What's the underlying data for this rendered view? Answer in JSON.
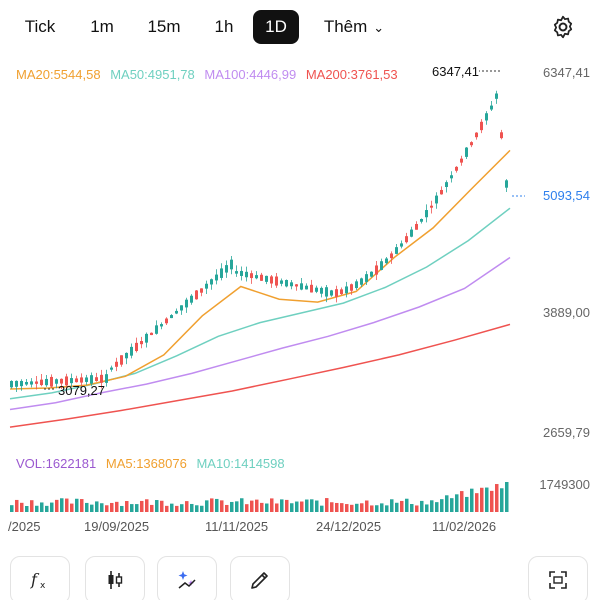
{
  "timeframes": [
    {
      "label": "Tick",
      "active": false
    },
    {
      "label": "1m",
      "active": false
    },
    {
      "label": "15m",
      "active": false
    },
    {
      "label": "1h",
      "active": false
    },
    {
      "label": "1D",
      "active": true
    }
  ],
  "more_label": "Thêm",
  "ma_legend": {
    "ma20": "MA20:5544,58",
    "ma50": "MA50:4951,78",
    "ma100": "MA100:4446,99",
    "ma200": "MA200:3761,53"
  },
  "price_axis": {
    "high": "6347,41",
    "current": "5093,54",
    "mid": "3889,00",
    "low": "2659,79"
  },
  "annotations": {
    "max": "6347,41",
    "min": "3079,27"
  },
  "volume_legend": {
    "vol": "VOL:1622181",
    "ma5": "MA5:1368076",
    "ma10": "MA10:1414598",
    "axis_label": "1749300"
  },
  "dates": [
    "/2025",
    "19/09/2025",
    "11/11/2025",
    "24/12/2025",
    "11/02/2026"
  ],
  "colors": {
    "up": "#26a69a",
    "down": "#ef5350",
    "ma20": "#f0a030",
    "ma50": "#6fd0c0",
    "ma100": "#c08cf0",
    "ma200": "#ef5350",
    "vol": "#9b59d0",
    "current": "#2f80ed"
  },
  "toolbar": [
    "fx-icon",
    "candlestick-icon",
    "sparkle-icon",
    "pencil-icon",
    "fullscreen-icon"
  ],
  "chart_data": {
    "type": "candlestick",
    "y_range": [
      2659.79,
      6347.41
    ],
    "ma20": [
      3100,
      3110,
      3140,
      3230,
      3450,
      3850,
      4150,
      4020,
      3990,
      4100,
      4450,
      4750,
      5150,
      5544.58
    ],
    "ma50": [
      3000,
      3060,
      3150,
      3260,
      3440,
      3640,
      3780,
      3880,
      3980,
      4140,
      4350,
      4620,
      4951.78
    ],
    "ma100": [
      2890,
      2960,
      3060,
      3150,
      3260,
      3390,
      3520,
      3640,
      3780,
      3940,
      4130,
      4446.99
    ],
    "ma200": [
      2710,
      2790,
      2880,
      2980,
      3080,
      3200,
      3320,
      3450,
      3600,
      3761.53
    ]
  }
}
